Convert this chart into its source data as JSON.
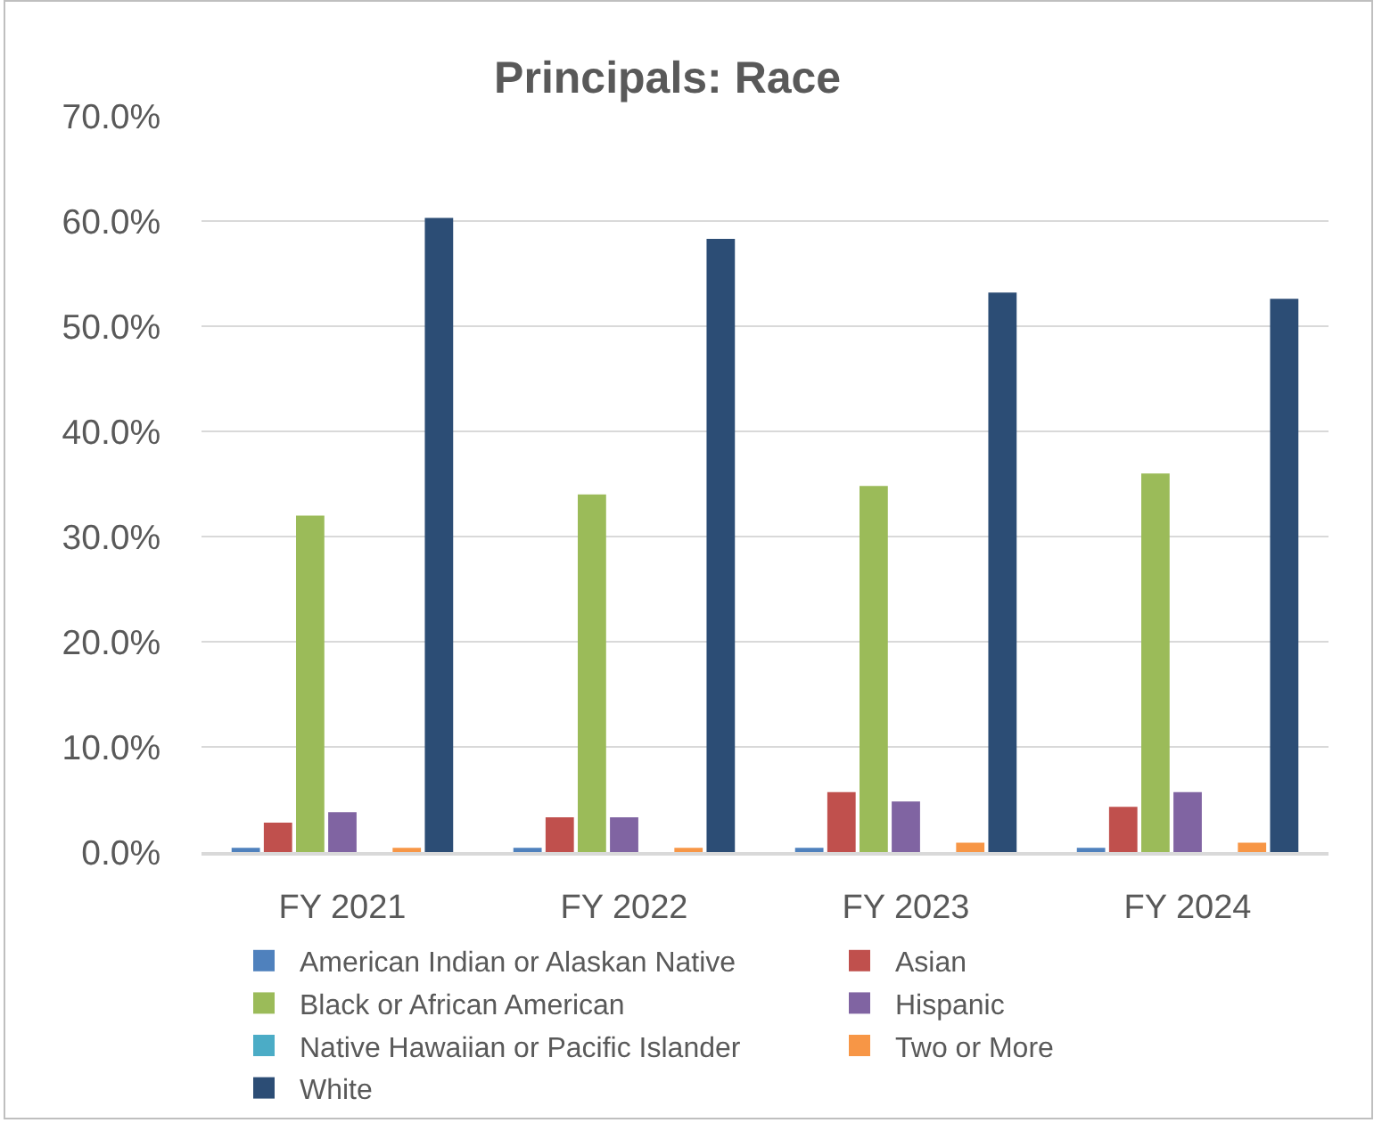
{
  "chart_data": {
    "type": "bar",
    "title": "Principals: Race",
    "categories": [
      "FY 2021",
      "FY 2022",
      "FY 2023",
      "FY 2024"
    ],
    "series": [
      {
        "name": "American Indian or Alaskan Native",
        "color": "#4f81bd",
        "values": [
          0.4,
          0.4,
          0.4,
          0.4
        ]
      },
      {
        "name": "Asian",
        "color": "#c0504d",
        "values": [
          2.8,
          3.3,
          5.7,
          4.3
        ]
      },
      {
        "name": "Black or African American",
        "color": "#9bbb59",
        "values": [
          32.0,
          34.0,
          34.8,
          36.0
        ]
      },
      {
        "name": "Hispanic",
        "color": "#8064a2",
        "values": [
          3.8,
          3.3,
          4.8,
          5.7
        ]
      },
      {
        "name": "Native Hawaiian or Pacific Islander",
        "color": "#4bacc6",
        "values": [
          0,
          0,
          0,
          0
        ]
      },
      {
        "name": "Two or More",
        "color": "#f79646",
        "values": [
          0.4,
          0.4,
          0.9,
          0.9
        ]
      },
      {
        "name": "White",
        "color": "#2c4d75",
        "values": [
          60.3,
          58.3,
          53.2,
          52.6
        ]
      }
    ],
    "ylim": [
      0,
      70
    ],
    "yticks": [
      {
        "value": 0,
        "label": "0.0%"
      },
      {
        "value": 10,
        "label": "10.0%"
      },
      {
        "value": 20,
        "label": "20.0%"
      },
      {
        "value": 30,
        "label": "30.0%"
      },
      {
        "value": 40,
        "label": "40.0%"
      },
      {
        "value": 50,
        "label": "50.0%"
      },
      {
        "value": 60,
        "label": "60.0%"
      },
      {
        "value": 70,
        "label": "70.0%"
      }
    ],
    "grid": "y",
    "legend": "bottom"
  }
}
